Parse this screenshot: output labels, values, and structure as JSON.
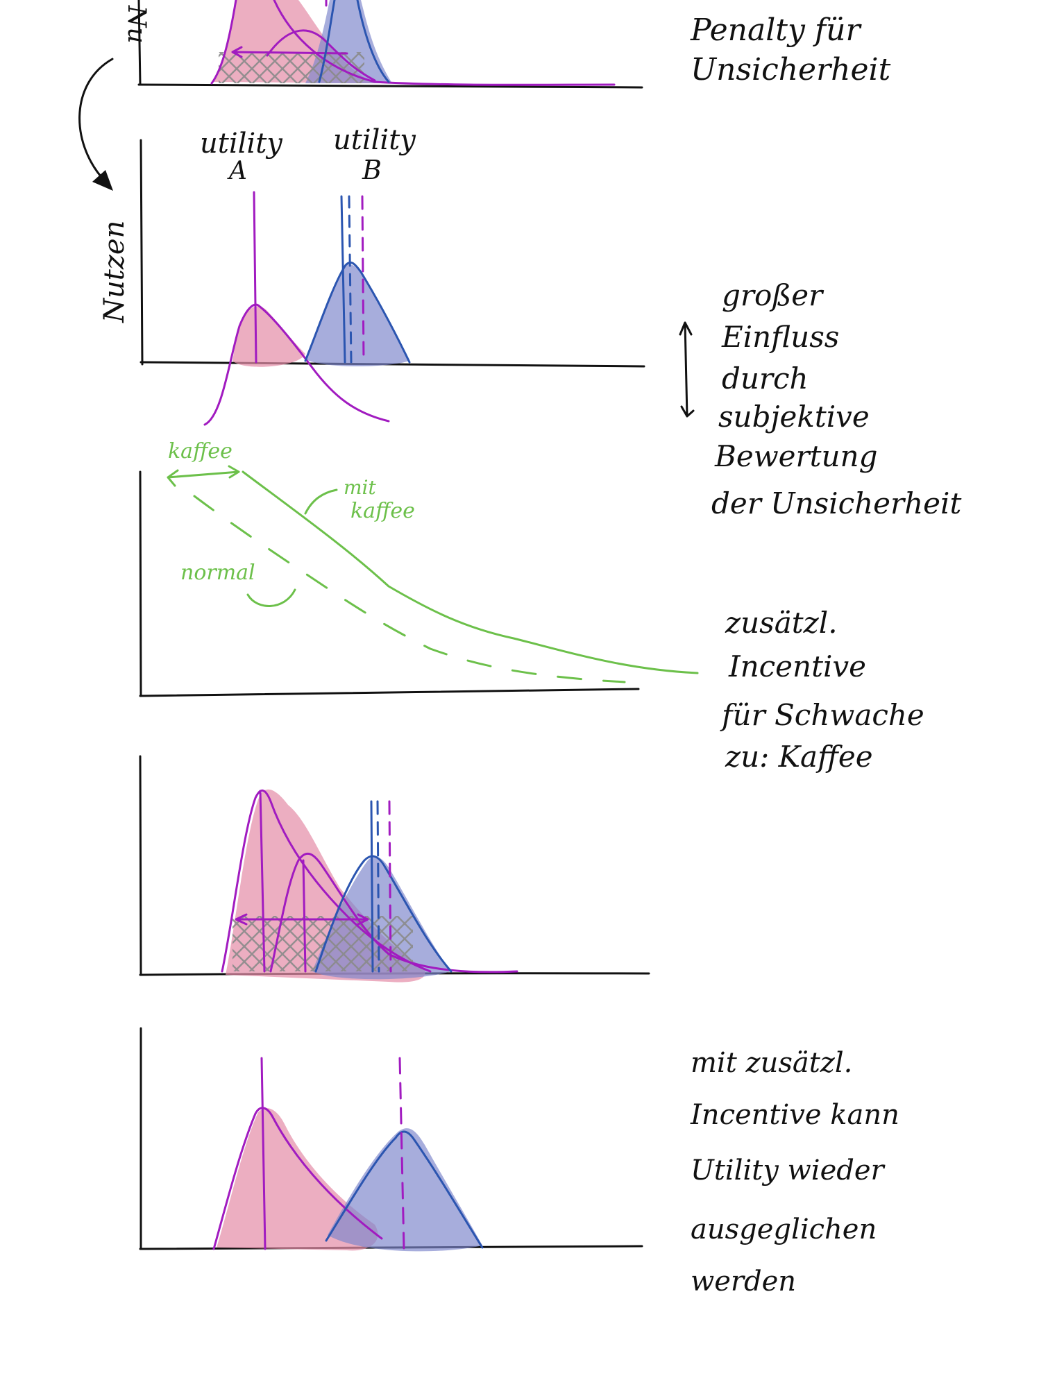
{
  "axis_label_nutzen": "Nutzen",
  "axis_label_partial": "Nu",
  "panel1": {
    "note_lines": [
      "Penalty für",
      "Unsicherheit"
    ]
  },
  "panel2": {
    "label_a_line1": "utility",
    "label_a_line2": "A",
    "label_b_line1": "utility",
    "label_b_line2": "B",
    "note_lines": [
      "großer",
      "Einfluss",
      "durch",
      "subjektive",
      "Bewertung",
      "der Unsicherheit"
    ]
  },
  "panel3": {
    "label_kaffee": "kaffee",
    "label_mit_kaffee_line1": "mit",
    "label_mit_kaffee_line2": "kaffee",
    "label_normal": "normal",
    "note_lines": [
      "zusätzl.",
      "Incentive",
      "für Schwache",
      "zu: Kaffee"
    ]
  },
  "panel5": {
    "note_lines": [
      "mit zusätzl.",
      "Incentive kann",
      "Utility wieder",
      "ausgeglichen",
      "werden"
    ]
  },
  "colors": {
    "ink": "#111111",
    "magenta": "#a11bc0",
    "blue": "#2b55b0",
    "green": "#6cc04a",
    "pink_fill": "#e58fa9",
    "blue_fill": "#7e86cc"
  }
}
